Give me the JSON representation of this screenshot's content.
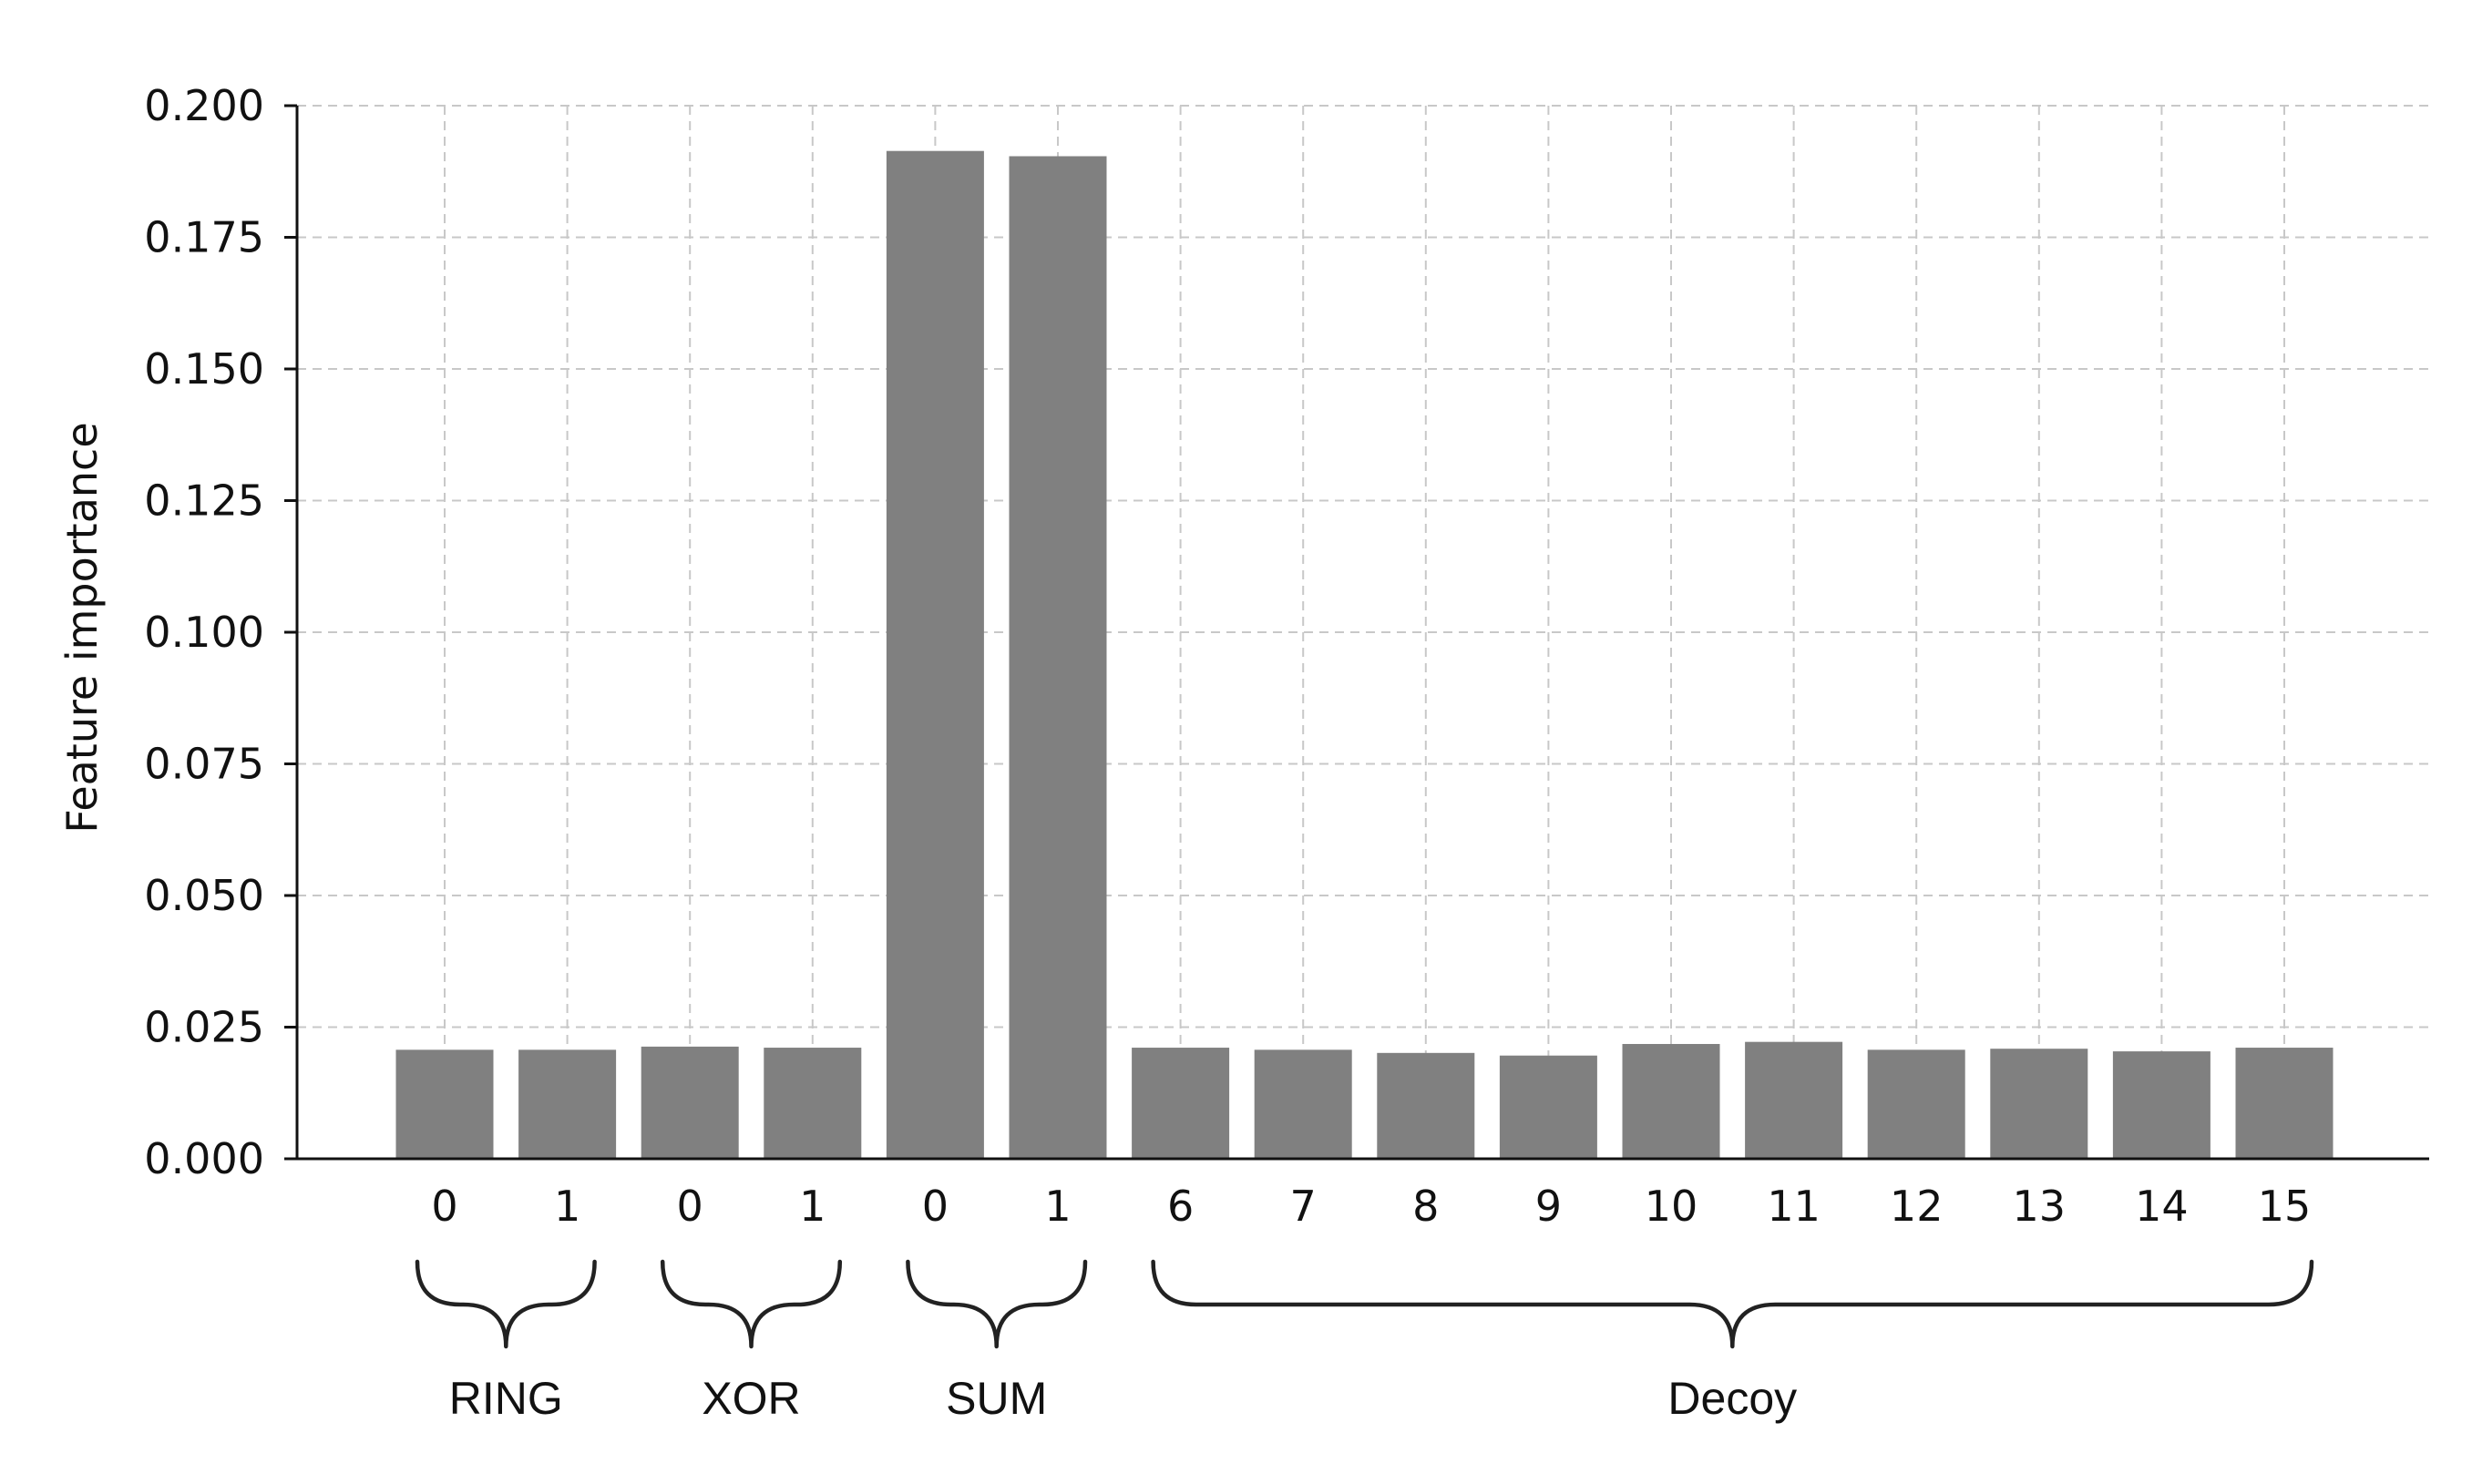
{
  "chart_data": {
    "type": "bar",
    "title": "",
    "xlabel": "",
    "ylabel": "Feature importance",
    "ylim": [
      0,
      0.2
    ],
    "yticks": [
      "0.000",
      "0.025",
      "0.050",
      "0.075",
      "0.100",
      "0.125",
      "0.150",
      "0.175",
      "0.200"
    ],
    "ytick_values": [
      0,
      0.025,
      0.05,
      0.075,
      0.1,
      0.125,
      0.15,
      0.175,
      0.2
    ],
    "categories": [
      "0",
      "1",
      "0",
      "1",
      "0",
      "1",
      "6",
      "7",
      "8",
      "9",
      "10",
      "11",
      "12",
      "13",
      "14",
      "15"
    ],
    "values": [
      0.0207,
      0.0207,
      0.0213,
      0.0211,
      0.1914,
      0.1904,
      0.0211,
      0.0207,
      0.0201,
      0.0196,
      0.0218,
      0.0222,
      0.0207,
      0.0209,
      0.0204,
      0.0211
    ],
    "groups": [
      {
        "label": "RING",
        "start": 0,
        "end": 1
      },
      {
        "label": "XOR",
        "start": 2,
        "end": 3
      },
      {
        "label": "SUM",
        "start": 4,
        "end": 5
      },
      {
        "label": "Decoy",
        "start": 6,
        "end": 15
      }
    ],
    "bar_color": "#808080",
    "grid": true
  }
}
